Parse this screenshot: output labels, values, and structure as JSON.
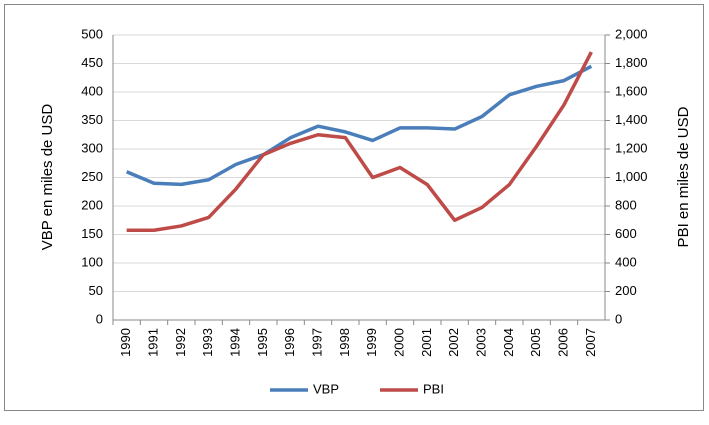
{
  "chart_data": {
    "type": "line",
    "categories": [
      "1990",
      "1991",
      "1992",
      "1993",
      "1994",
      "1995",
      "1996",
      "1997",
      "1998",
      "1999",
      "2000",
      "2001",
      "2002",
      "2003",
      "2004",
      "2005",
      "2006",
      "2007"
    ],
    "series": [
      {
        "name": "VBP",
        "color": "#4a7ebb",
        "values": [
          260,
          240,
          238,
          246,
          273,
          290,
          320,
          340,
          330,
          315,
          337,
          337,
          335,
          357,
          395,
          410,
          420,
          445
        ]
      },
      {
        "name": "PBI",
        "color": "#be4b48",
        "axis": "y2",
        "values": [
          630,
          630,
          660,
          720,
          920,
          1160,
          1240,
          1300,
          1280,
          1000,
          1070,
          950,
          700,
          790,
          950,
          1220,
          1510,
          1880
        ]
      }
    ],
    "ylabel": "VBP en miles de USD",
    "y2label": "PBI en miles de USD",
    "ylim": [
      0,
      500
    ],
    "yticks": [
      0,
      50,
      100,
      150,
      200,
      250,
      300,
      350,
      400,
      450,
      500
    ],
    "y2lim": [
      0,
      2000
    ],
    "y2ticks": [
      0,
      200,
      400,
      600,
      800,
      {
        "value": 1000,
        "label": "1,000"
      },
      {
        "value": 1200,
        "label": "1,200"
      },
      {
        "value": 1400,
        "label": "1,400"
      },
      {
        "value": 1600,
        "label": "1,600"
      },
      {
        "value": 1800,
        "label": "1,800"
      },
      {
        "value": 2000,
        "label": "2,000"
      }
    ],
    "grid": true,
    "legend": "bottom"
  }
}
